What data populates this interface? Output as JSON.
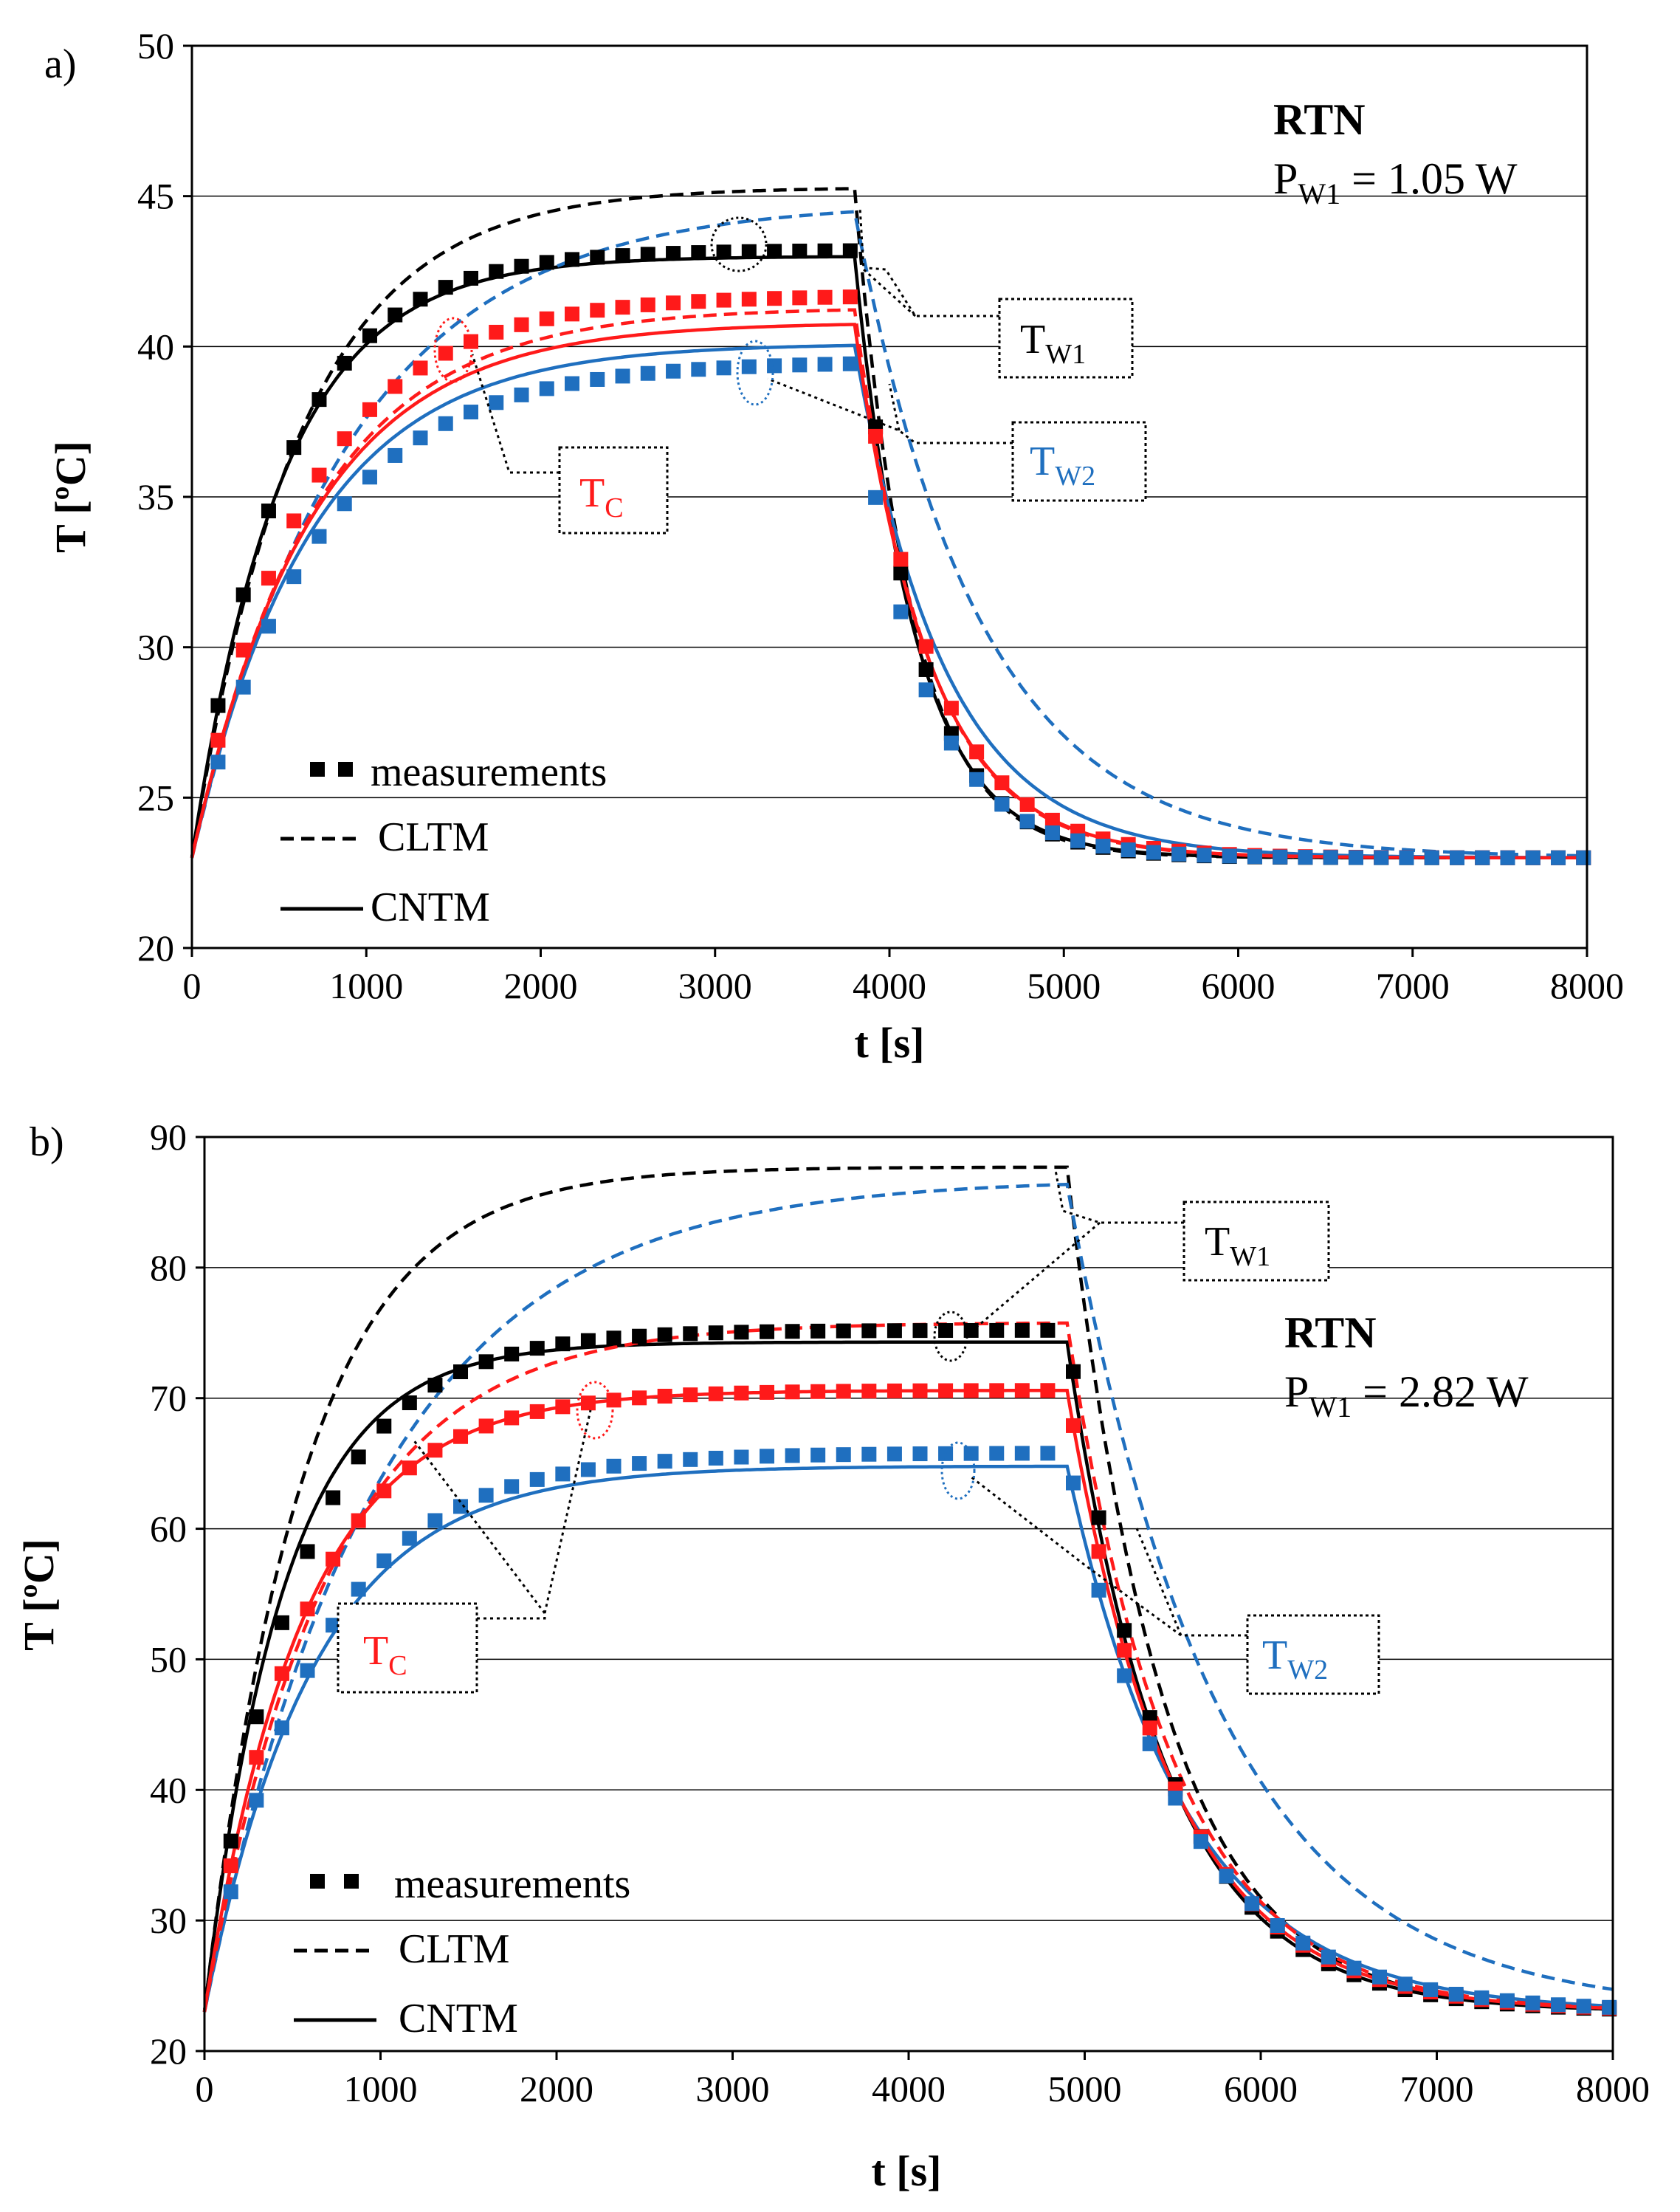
{
  "chart_data": [
    {
      "panel_label": "a)",
      "type": "line",
      "title": "RTN",
      "power_prefix": "P",
      "power_sub": "W1",
      "power_value": " = 1.05 W",
      "xlabel": "t [s]",
      "ylabel": "T [ºC]",
      "xlim": [
        0,
        8000
      ],
      "ylim": [
        20,
        50
      ],
      "xticks": [
        0,
        1000,
        2000,
        3000,
        4000,
        5000,
        6000,
        7000,
        8000
      ],
      "yticks": [
        20,
        25,
        30,
        35,
        40,
        45,
        50
      ],
      "t_off": 3800,
      "ambient": 23.0,
      "legend": {
        "measurements": "measurements",
        "cltm": "CLTM",
        "cntm": "CNTM"
      },
      "callouts": {
        "tw1": {
          "main": "T",
          "sub": "W1"
        },
        "tw2": {
          "main": "T",
          "sub": "W2"
        },
        "tc": {
          "main": "T",
          "sub": "C"
        }
      },
      "series": [
        {
          "name": "TW1 CLTM",
          "color": "#000000",
          "style": "dashed",
          "plateau": 45.3,
          "tau_heat": 620,
          "tau_cool": 330
        },
        {
          "name": "TW1 CNTM",
          "color": "#000000",
          "style": "solid",
          "plateau": 43.0,
          "tau_heat": 520,
          "tau_cool": 350
        },
        {
          "name": "TW2 CLTM",
          "color": "#1f6fbf",
          "style": "dashed",
          "plateau": 44.8,
          "tau_heat": 900,
          "tau_cool": 720
        },
        {
          "name": "TW2 CNTM",
          "color": "#1f6fbf",
          "style": "solid",
          "plateau": 40.1,
          "tau_heat": 680,
          "tau_cool": 520
        },
        {
          "name": "TC CLTM",
          "color": "#ff1a1a",
          "style": "dashed",
          "plateau": 41.3,
          "tau_heat": 700,
          "tau_cool": 420
        },
        {
          "name": "TC CNTM",
          "color": "#ff1a1a",
          "style": "solid",
          "plateau": 40.8,
          "tau_heat": 680,
          "tau_cool": 430
        },
        {
          "name": "TW1 measurements",
          "color": "#000000",
          "style": "markers",
          "plateau": 43.2,
          "tau_heat": 520,
          "tau_cool": 350
        },
        {
          "name": "TC measurements",
          "color": "#ff1a1a",
          "style": "markers",
          "plateau": 41.7,
          "tau_heat": 640,
          "tau_cool": 420
        },
        {
          "name": "TW2 measurements",
          "color": "#1f6fbf",
          "style": "markers",
          "plateau": 39.5,
          "tau_heat": 700,
          "tau_cool": 380
        }
      ]
    },
    {
      "panel_label": "b)",
      "type": "line",
      "title": "RTN",
      "power_prefix": "P",
      "power_sub": "W1",
      "power_value": " = 2.82 W",
      "xlabel": "t [s]",
      "ylabel": "T [ºC]",
      "xlim": [
        0,
        8000
      ],
      "ylim": [
        20,
        90
      ],
      "xticks": [
        0,
        1000,
        2000,
        3000,
        4000,
        5000,
        6000,
        7000,
        8000
      ],
      "yticks": [
        20,
        30,
        40,
        50,
        60,
        70,
        80,
        90
      ],
      "t_off": 4900,
      "ambient": 23.0,
      "legend": {
        "measurements": "measurements",
        "cltm": "CLTM",
        "cntm": "CNTM"
      },
      "callouts": {
        "tw1": {
          "main": "T",
          "sub": "W1"
        },
        "tw2": {
          "main": "T",
          "sub": "W2"
        },
        "tc": {
          "main": "T",
          "sub": "C"
        }
      },
      "series": [
        {
          "name": "TW1 CLTM",
          "color": "#000000",
          "style": "dashed",
          "plateau": 87.7,
          "tau_heat": 560,
          "tau_cool": 550
        },
        {
          "name": "TW1 CNTM",
          "color": "#000000",
          "style": "solid",
          "plateau": 74.3,
          "tau_heat": 450,
          "tau_cool": 560
        },
        {
          "name": "TW2 CLTM",
          "color": "#1f6fbf",
          "style": "dashed",
          "plateau": 86.8,
          "tau_heat": 980,
          "tau_cool": 860
        },
        {
          "name": "TW2 CNTM",
          "color": "#1f6fbf",
          "style": "solid",
          "plateau": 64.8,
          "tau_heat": 620,
          "tau_cool": 680
        },
        {
          "name": "TC CLTM",
          "color": "#ff1a1a",
          "style": "dashed",
          "plateau": 75.8,
          "tau_heat": 700,
          "tau_cool": 600
        },
        {
          "name": "TC CNTM",
          "color": "#ff1a1a",
          "style": "solid",
          "plateau": 70.6,
          "tau_heat": 560,
          "tau_cool": 600
        },
        {
          "name": "TW1 measurements",
          "color": "#000000",
          "style": "markers",
          "plateau": 75.2,
          "tau_heat": 520,
          "tau_cool": 560
        },
        {
          "name": "TC measurements",
          "color": "#ff1a1a",
          "style": "markers",
          "plateau": 70.6,
          "tau_heat": 560,
          "tau_cool": 600
        },
        {
          "name": "TW2 measurements",
          "color": "#1f6fbf",
          "style": "markers",
          "plateau": 65.8,
          "tau_heat": 620,
          "tau_cool": 640
        }
      ]
    }
  ]
}
